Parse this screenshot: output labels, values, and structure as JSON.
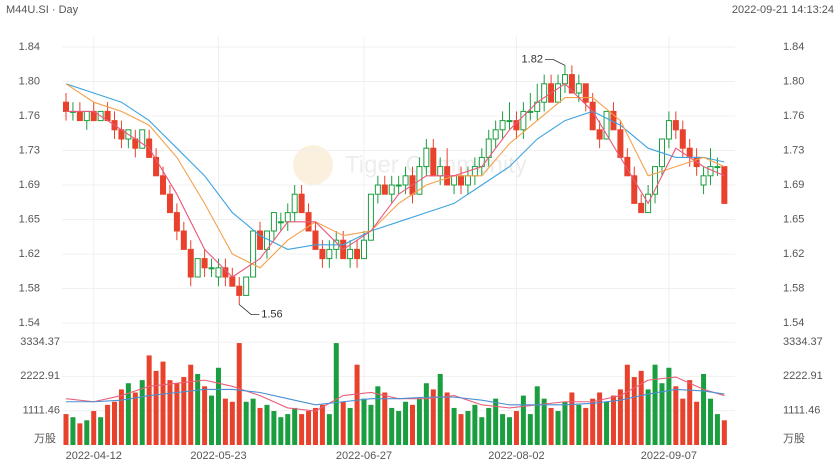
{
  "chart_data": {
    "type": "candlestick",
    "title": "M44U.SI · Day",
    "timestamp": "2022-09-21 14:13:24",
    "watermark": "Tiger Community",
    "volume_unit": "万股",
    "max_label": "1.82",
    "min_label": "1.56",
    "up_color": "#1a9e3f",
    "down_color": "#e8412c",
    "grid": true,
    "categories": [
      null,
      null,
      null,
      null,
      "2022-04-12",
      null,
      null,
      null,
      null,
      null,
      null,
      null,
      null,
      null,
      null,
      null,
      null,
      null,
      null,
      null,
      null,
      null,
      "2022-05-23",
      null,
      null,
      null,
      null,
      null,
      null,
      null,
      null,
      null,
      null,
      null,
      null,
      null,
      null,
      null,
      null,
      null,
      null,
      null,
      null,
      "2022-06-27",
      null,
      null,
      null,
      null,
      null,
      null,
      null,
      null,
      null,
      null,
      null,
      null,
      null,
      null,
      null,
      null,
      null,
      null,
      null,
      null,
      null,
      "2022-08-02",
      null,
      null,
      null,
      null,
      null,
      null,
      null,
      null,
      null,
      null,
      null,
      null,
      null,
      null,
      null,
      null,
      null,
      null,
      null,
      null,
      null,
      "2022-09-07",
      null,
      null,
      null,
      null,
      null,
      null,
      null,
      null
    ],
    "open": [
      1.78,
      1.77,
      1.77,
      1.76,
      1.77,
      1.76,
      1.77,
      1.76,
      1.75,
      1.74,
      1.74,
      1.73,
      1.74,
      1.72,
      1.7,
      1.68,
      1.66,
      1.64,
      1.62,
      1.59,
      1.61,
      1.6,
      1.59,
      1.6,
      1.59,
      1.58,
      1.57,
      1.59,
      1.64,
      1.62,
      1.64,
      1.65,
      1.65,
      1.66,
      1.68,
      1.66,
      1.64,
      1.62,
      1.61,
      1.62,
      1.63,
      1.61,
      1.62,
      1.61,
      1.63,
      1.68,
      1.69,
      1.68,
      1.69,
      1.69,
      1.7,
      1.68,
      1.71,
      1.73,
      1.7,
      1.71,
      1.69,
      1.7,
      1.69,
      1.7,
      1.71,
      1.72,
      1.74,
      1.75,
      1.76,
      1.76,
      1.75,
      1.77,
      1.77,
      1.78,
      1.8,
      1.78,
      1.8,
      1.81,
      1.79,
      1.8,
      1.78,
      1.75,
      1.74,
      1.77,
      1.75,
      1.72,
      1.7,
      1.67,
      1.66,
      1.68,
      1.71,
      1.74,
      1.76,
      1.75,
      1.73,
      1.72,
      1.69,
      1.7,
      1.71,
      1.71
    ],
    "high": [
      1.79,
      1.78,
      1.78,
      1.77,
      1.78,
      1.77,
      1.78,
      1.77,
      1.76,
      1.75,
      1.75,
      1.75,
      1.75,
      1.73,
      1.71,
      1.69,
      1.67,
      1.65,
      1.63,
      1.61,
      1.62,
      1.61,
      1.61,
      1.61,
      1.6,
      1.59,
      1.59,
      1.64,
      1.65,
      1.64,
      1.66,
      1.66,
      1.67,
      1.69,
      1.69,
      1.67,
      1.65,
      1.63,
      1.63,
      1.64,
      1.64,
      1.63,
      1.63,
      1.64,
      1.68,
      1.7,
      1.7,
      1.7,
      1.7,
      1.71,
      1.71,
      1.72,
      1.74,
      1.74,
      1.72,
      1.73,
      1.7,
      1.71,
      1.71,
      1.72,
      1.73,
      1.75,
      1.76,
      1.77,
      1.78,
      1.77,
      1.78,
      1.79,
      1.8,
      1.81,
      1.81,
      1.81,
      1.82,
      1.82,
      1.81,
      1.8,
      1.79,
      1.76,
      1.77,
      1.78,
      1.76,
      1.73,
      1.71,
      1.68,
      1.69,
      1.71,
      1.74,
      1.77,
      1.77,
      1.76,
      1.74,
      1.73,
      1.71,
      1.73,
      1.72,
      1.71
    ],
    "low": [
      1.76,
      1.76,
      1.76,
      1.75,
      1.76,
      1.76,
      1.76,
      1.74,
      1.73,
      1.73,
      1.72,
      1.73,
      1.72,
      1.7,
      1.68,
      1.66,
      1.63,
      1.62,
      1.58,
      1.59,
      1.59,
      1.59,
      1.58,
      1.58,
      1.58,
      1.56,
      1.57,
      1.59,
      1.62,
      1.61,
      1.63,
      1.64,
      1.64,
      1.65,
      1.66,
      1.64,
      1.62,
      1.6,
      1.6,
      1.61,
      1.61,
      1.6,
      1.6,
      1.61,
      1.63,
      1.67,
      1.68,
      1.67,
      1.68,
      1.68,
      1.67,
      1.68,
      1.7,
      1.7,
      1.69,
      1.69,
      1.68,
      1.68,
      1.68,
      1.69,
      1.7,
      1.71,
      1.73,
      1.74,
      1.75,
      1.74,
      1.74,
      1.76,
      1.76,
      1.77,
      1.78,
      1.78,
      1.79,
      1.79,
      1.78,
      1.77,
      1.75,
      1.73,
      1.74,
      1.75,
      1.72,
      1.7,
      1.67,
      1.66,
      1.66,
      1.67,
      1.7,
      1.73,
      1.74,
      1.72,
      1.71,
      1.7,
      1.68,
      1.69,
      1.7,
      1.67
    ],
    "close": [
      1.77,
      1.77,
      1.76,
      1.77,
      1.76,
      1.77,
      1.76,
      1.75,
      1.74,
      1.75,
      1.73,
      1.75,
      1.72,
      1.7,
      1.68,
      1.66,
      1.64,
      1.62,
      1.59,
      1.61,
      1.6,
      1.6,
      1.6,
      1.59,
      1.58,
      1.57,
      1.59,
      1.64,
      1.62,
      1.64,
      1.66,
      1.65,
      1.66,
      1.68,
      1.66,
      1.64,
      1.62,
      1.61,
      1.62,
      1.63,
      1.61,
      1.62,
      1.61,
      1.63,
      1.68,
      1.69,
      1.68,
      1.69,
      1.69,
      1.7,
      1.68,
      1.71,
      1.73,
      1.7,
      1.71,
      1.69,
      1.7,
      1.69,
      1.7,
      1.71,
      1.72,
      1.74,
      1.75,
      1.76,
      1.76,
      1.75,
      1.77,
      1.77,
      1.78,
      1.8,
      1.78,
      1.8,
      1.81,
      1.79,
      1.8,
      1.78,
      1.75,
      1.74,
      1.77,
      1.75,
      1.72,
      1.7,
      1.67,
      1.66,
      1.68,
      1.71,
      1.74,
      1.76,
      1.75,
      1.73,
      1.72,
      1.71,
      1.7,
      1.71,
      1.71,
      1.67
    ],
    "volume": [
      1000,
      900,
      700,
      800,
      1100,
      900,
      1300,
      1400,
      1800,
      2000,
      1700,
      2100,
      2900,
      2400,
      2700,
      2100,
      2000,
      2200,
      2600,
      2300,
      1900,
      1600,
      2500,
      1500,
      1400,
      3300,
      1400,
      1500,
      1200,
      1300,
      1100,
      900,
      1000,
      1200,
      1000,
      1100,
      1200,
      1300,
      1000,
      3300,
      1400,
      1200,
      2600,
      1500,
      1300,
      1900,
      1700,
      1200,
      1100,
      1400,
      1300,
      1500,
      2000,
      1800,
      2300,
      1700,
      1200,
      1000,
      1100,
      1300,
      900,
      1200,
      1500,
      1000,
      900,
      1100,
      1600,
      1000,
      1900,
      1500,
      1200,
      1100,
      1400,
      1700,
      1300,
      1200,
      1500,
      1700,
      1400,
      1600,
      1800,
      2600,
      2200,
      2400,
      1800,
      2600,
      2000,
      2500,
      1900,
      1500,
      2100,
      1400,
      2300,
      1500,
      1000,
      800
    ],
    "ma_series": [
      {
        "color": "#3ca4e0",
        "x": [
          0,
          4,
          8,
          12,
          16,
          20,
          24,
          28,
          32,
          36,
          40,
          44,
          48,
          52,
          56,
          60,
          64,
          68,
          72,
          76,
          80,
          84,
          88,
          92,
          95
        ],
        "values": [
          1.8,
          1.79,
          1.78,
          1.76,
          1.73,
          1.7,
          1.66,
          1.635,
          1.62,
          1.625,
          1.625,
          1.64,
          1.65,
          1.66,
          1.67,
          1.69,
          1.71,
          1.74,
          1.76,
          1.77,
          1.755,
          1.73,
          1.72,
          1.72,
          1.715
        ]
      },
      {
        "color": "#f5a04a",
        "x": [
          0,
          4,
          8,
          12,
          16,
          20,
          24,
          28,
          32,
          36,
          40,
          44,
          48,
          52,
          56,
          60,
          64,
          68,
          72,
          76,
          80,
          84,
          88,
          92,
          95
        ],
        "values": [
          1.8,
          1.78,
          1.77,
          1.755,
          1.72,
          1.67,
          1.615,
          1.6,
          1.63,
          1.65,
          1.635,
          1.64,
          1.67,
          1.69,
          1.7,
          1.7,
          1.735,
          1.76,
          1.785,
          1.785,
          1.76,
          1.7,
          1.71,
          1.72,
          1.71
        ]
      },
      {
        "color": "#e85a7a",
        "x": [
          0,
          4,
          8,
          12,
          16,
          20,
          24,
          28,
          32,
          36,
          40,
          44,
          48,
          52,
          56,
          60,
          64,
          68,
          72,
          76,
          80,
          84,
          88,
          92,
          95
        ],
        "values": [
          1.77,
          1.77,
          1.75,
          1.73,
          1.68,
          1.62,
          1.59,
          1.61,
          1.65,
          1.65,
          1.62,
          1.64,
          1.68,
          1.7,
          1.7,
          1.71,
          1.75,
          1.78,
          1.8,
          1.77,
          1.72,
          1.67,
          1.73,
          1.71,
          1.7
        ]
      }
    ],
    "volume_ma_series": [
      {
        "color": "#e8607a",
        "x": [
          0,
          4,
          8,
          12,
          16,
          20,
          24,
          28,
          32,
          36,
          40,
          44,
          48,
          52,
          56,
          60,
          64,
          68,
          72,
          76,
          80,
          84,
          88,
          92,
          95
        ],
        "values": [
          1500,
          1400,
          1600,
          1900,
          2000,
          2100,
          1900,
          1600,
          1200,
          1100,
          1600,
          1700,
          1500,
          1500,
          1600,
          1300,
          1200,
          1300,
          1400,
          1400,
          1600,
          2100,
          2200,
          1800,
          1600
        ]
      },
      {
        "color": "#4a90d0",
        "x": [
          0,
          4,
          8,
          12,
          16,
          20,
          24,
          28,
          32,
          36,
          40,
          44,
          48,
          52,
          56,
          60,
          64,
          68,
          72,
          76,
          80,
          84,
          88,
          92,
          95
        ],
        "values": [
          1400,
          1400,
          1450,
          1600,
          1700,
          1800,
          1800,
          1700,
          1500,
          1300,
          1400,
          1500,
          1500,
          1550,
          1550,
          1450,
          1300,
          1300,
          1300,
          1350,
          1450,
          1650,
          1800,
          1750,
          1650
        ]
      }
    ],
    "ylim": [
      1.54,
      1.84
    ],
    "yticks": [
      1.84,
      {
        "value": 1.8025,
        "label": "1.80"
      },
      {
        "value": 1.765,
        "label": "1.76"
      },
      {
        "value": 1.7275,
        "label": "1.73"
      },
      1.69,
      {
        "value": 1.6525,
        "label": "1.65"
      },
      {
        "value": 1.615,
        "label": "1.62"
      },
      {
        "value": 1.5775,
        "label": "1.58"
      },
      1.54
    ],
    "vylim": [
      0,
      3334.37
    ],
    "vyticks": [
      1111.46,
      2222.91,
      3334.37
    ]
  }
}
